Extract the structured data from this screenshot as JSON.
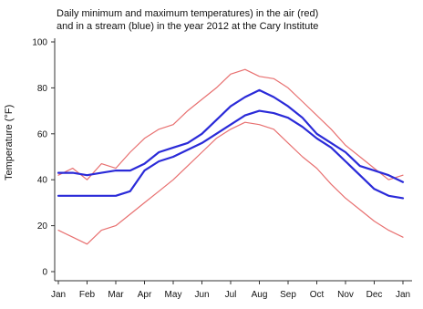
{
  "chart_data": {
    "type": "line",
    "title_line1": "Daily minimum and maximum temperatures) in the air (red)",
    "title_line2": "and in a stream (blue) in the year 2012 at the Cary Institute",
    "ylabel": "Temperature (°F)",
    "xlabel": "",
    "x_tick_labels": [
      "Jan",
      "Feb",
      "Mar",
      "Apr",
      "May",
      "Jun",
      "Jul",
      "Aug",
      "Sep",
      "Oct",
      "Nov",
      "Dec",
      "Jan"
    ],
    "y_ticks": [
      0,
      20,
      40,
      60,
      80,
      100
    ],
    "ylim": [
      -5,
      100
    ],
    "xlim": [
      0,
      12
    ],
    "grid": false,
    "legend": "none",
    "series": [
      {
        "color": "#e87070",
        "months": [
          0,
          0.5,
          1,
          1.5,
          2,
          2.5,
          3,
          3.5,
          4,
          4.5,
          5,
          5.5,
          6,
          6.5,
          7,
          7.5,
          8,
          8.5,
          9,
          9.5,
          10,
          10.5,
          11,
          11.5,
          12
        ],
        "values": [
          42,
          45,
          40,
          47,
          45,
          52,
          58,
          62,
          64,
          70,
          75,
          80,
          86,
          88,
          85,
          84,
          80,
          74,
          68,
          62,
          55,
          50,
          45,
          40,
          42
        ]
      },
      {
        "color": "#e87070",
        "months": [
          0,
          0.5,
          1,
          1.5,
          2,
          2.5,
          3,
          3.5,
          4,
          4.5,
          5,
          5.5,
          6,
          6.5,
          7,
          7.5,
          8,
          8.5,
          9,
          9.5,
          10,
          10.5,
          11,
          11.5,
          12
        ],
        "values": [
          18,
          15,
          12,
          18,
          20,
          25,
          30,
          35,
          40,
          46,
          52,
          58,
          62,
          65,
          64,
          62,
          56,
          50,
          45,
          38,
          32,
          27,
          22,
          18,
          15
        ]
      },
      {
        "color": "#2a2ad8",
        "months": [
          0,
          0.5,
          1,
          1.5,
          2,
          2.5,
          3,
          3.5,
          4,
          4.5,
          5,
          5.5,
          6,
          6.5,
          7,
          7.5,
          8,
          8.5,
          9,
          9.5,
          10,
          10.5,
          11,
          11.5,
          12
        ],
        "values": [
          43,
          43,
          42,
          43,
          44,
          44,
          47,
          52,
          54,
          56,
          60,
          66,
          72,
          76,
          79,
          76,
          72,
          67,
          60,
          56,
          52,
          46,
          44,
          42,
          39
        ]
      },
      {
        "color": "#2a2ad8",
        "months": [
          0,
          0.5,
          1,
          1.5,
          2,
          2.5,
          3,
          3.5,
          4,
          4.5,
          5,
          5.5,
          6,
          6.5,
          7,
          7.5,
          8,
          8.5,
          9,
          9.5,
          10,
          10.5,
          11,
          11.5,
          12
        ],
        "values": [
          33,
          33,
          33,
          33,
          33,
          35,
          44,
          48,
          50,
          53,
          56,
          60,
          64,
          68,
          70,
          69,
          67,
          63,
          58,
          54,
          48,
          42,
          36,
          33,
          32
        ]
      }
    ]
  }
}
